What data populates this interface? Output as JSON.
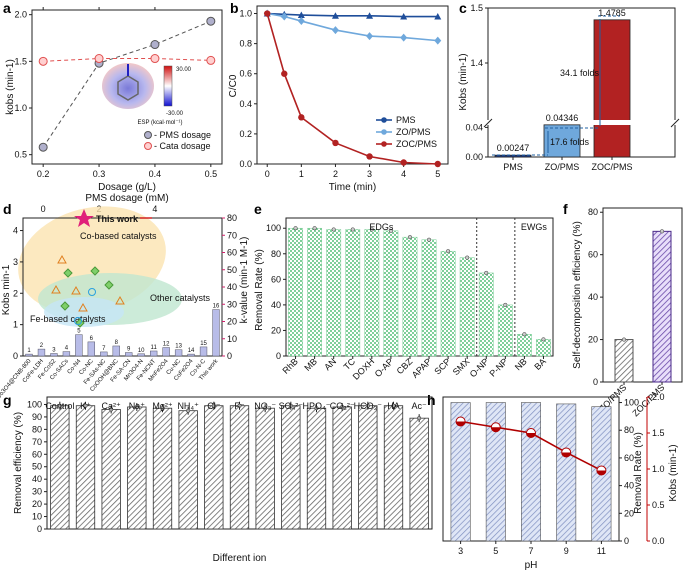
{
  "chart_data": [
    {
      "panel": "a",
      "type": "scatter",
      "xlabel": "Dosage (g/L)",
      "ylabel": "kobs (min-1)",
      "xticks": [
        "0.2",
        "0.3",
        "0.4",
        "0.5"
      ],
      "yticks": [
        "0.5",
        "1.0",
        "1.5",
        "2.0"
      ],
      "xlim": [
        0.18,
        0.52
      ],
      "ylim": [
        0.4,
        2.05
      ],
      "series": [
        {
          "name": "PMS dosage",
          "x": [
            0.2,
            0.3,
            0.4,
            0.5
          ],
          "y": [
            0.58,
            1.48,
            1.68,
            1.93
          ],
          "color": "#555555",
          "fill": "#b0b0cc"
        },
        {
          "name": "Cata dosage",
          "x": [
            0.2,
            0.3,
            0.4,
            0.5
          ],
          "y": [
            1.5,
            1.53,
            1.53,
            1.51
          ],
          "color": "#e05050",
          "fill": "#ffd0d0"
        }
      ],
      "top_axis": {
        "label": "PMS dosage (mM)",
        "ticks": [
          "0",
          "2",
          "4"
        ]
      },
      "esp": {
        "label": "ESP (kcal·mol⁻¹)",
        "max": "30.00",
        "min": "-30.00"
      }
    },
    {
      "panel": "b",
      "type": "line",
      "xlabel": "Time (min)",
      "ylabel": "C/C0",
      "x": [
        0,
        0.5,
        1,
        2,
        3,
        4,
        5
      ],
      "xticks": [
        "0",
        "1",
        "2",
        "3",
        "4",
        "5"
      ],
      "yticks": [
        "0.0",
        "0.2",
        "0.4",
        "0.6",
        "0.8",
        "1.0"
      ],
      "xlim": [
        -0.3,
        5.3
      ],
      "ylim": [
        0,
        1.05
      ],
      "series": [
        {
          "name": "PMS",
          "values": [
            1.0,
            0.995,
            0.99,
            0.985,
            0.985,
            0.98,
            0.98
          ],
          "color": "#1f4e9a",
          "marker": "triangle"
        },
        {
          "name": "ZO/PMS",
          "values": [
            1.0,
            0.98,
            0.95,
            0.89,
            0.85,
            0.84,
            0.82
          ],
          "color": "#6fa8dc",
          "marker": "diamond"
        },
        {
          "name": "ZOC/PMS",
          "values": [
            1.0,
            0.6,
            0.31,
            0.14,
            0.05,
            0.01,
            0.0
          ],
          "color": "#b22222",
          "marker": "circle"
        }
      ]
    },
    {
      "panel": "c",
      "type": "bar",
      "ylabel": "Kobs (min-1)",
      "categories": [
        "PMS",
        "ZO/PMS",
        "ZOC/PMS"
      ],
      "values": [
        0.00247,
        0.04346,
        1.4785
      ],
      "value_labels": [
        "0.00247",
        "0.04346",
        "1.4785"
      ],
      "colors": [
        "#1f3f8f",
        "#6fa8dc",
        "#b22222"
      ],
      "yticks": [
        "0.00",
        "0.04",
        "1.4",
        "1.5"
      ],
      "annotations": [
        "17.6 folds",
        "34.1 folds"
      ]
    },
    {
      "panel": "d",
      "type": "scatter",
      "ylabel": "Kobs min-1",
      "y2label": "k-value (min-1 M-1)",
      "yticks": [
        "0",
        "1",
        "2",
        "3",
        "4"
      ],
      "y2ticks": [
        "0",
        "10",
        "20",
        "30",
        "40",
        "50",
        "60",
        "70",
        "80"
      ],
      "groups": [
        "Co-based catalysts",
        "Other catalysts",
        "Fe-based catalysts"
      ],
      "star_label": "This work",
      "bar_numbers": [
        "1",
        "2",
        "3",
        "4",
        "5",
        "6",
        "7",
        "8",
        "9",
        "10",
        "11",
        "12",
        "13",
        "14",
        "15",
        "16"
      ],
      "bar_values": [
        0.06,
        0.22,
        0.08,
        0.14,
        0.68,
        0.45,
        0.13,
        0.32,
        0.11,
        0.07,
        0.16,
        0.27,
        0.2,
        0.06,
        0.29,
        1.48
      ],
      "categories": [
        "Co3O4@CNB-800",
        "CoFe-LDH",
        "Fe-CoS2",
        "Co-SACs",
        "Co-N4",
        "Co-NC",
        "Fe-SAs-NC",
        "CoOOH@BNC",
        "Fe-SA-CN",
        "Mn3O4-N",
        "Fe-NCNT",
        "MnFe2O4",
        "Cu-NC",
        "CoFe2O4",
        "Co-N-C",
        "This work"
      ]
    },
    {
      "panel": "e",
      "type": "bar",
      "ylabel": "Removal Rate (%)",
      "yticks": [
        "0",
        "20",
        "40",
        "60",
        "80",
        "100"
      ],
      "categories": [
        "RhB",
        "MB",
        "AN",
        "TC",
        "DOXH",
        "O-AP",
        "CBZ",
        "APAP",
        "SCP",
        "SMX",
        "O-NP",
        "P-NP",
        "NB",
        "BA"
      ],
      "values": [
        100,
        100,
        99,
        99,
        99,
        98,
        93,
        91,
        82,
        77,
        65,
        40,
        17,
        13
      ],
      "groups": [
        "EDGs",
        "EWGs"
      ]
    },
    {
      "panel": "f",
      "type": "bar",
      "ylabel": "Self-decomposition efficiency (%)",
      "yticks": [
        "0",
        "20",
        "40",
        "60",
        "80"
      ],
      "categories": [
        "ZO/PMS",
        "ZOC/PMS"
      ],
      "values": [
        20,
        71
      ]
    },
    {
      "panel": "g",
      "type": "bar",
      "xlabel": "Different ion",
      "ylabel": "Removal efficiency (%)",
      "yticks": [
        "0",
        "10",
        "20",
        "30",
        "40",
        "50",
        "60",
        "70",
        "80",
        "90",
        "100"
      ],
      "categories": [
        "Control",
        "K⁺",
        "Ca²⁺",
        "Na⁺",
        "Mg²⁺",
        "NH₄⁺",
        "Cl⁻",
        "F⁻",
        "NO₃⁻",
        "SO₄²⁻",
        "HPO₄⁻",
        "CO₃²⁻",
        "HCO₃⁻",
        "HA",
        "Ac⁻"
      ],
      "values": [
        99,
        99,
        96,
        98,
        97,
        95,
        99,
        99,
        97,
        99,
        97,
        98,
        99,
        99,
        89
      ]
    },
    {
      "panel": "h",
      "type": "bar",
      "xlabel": "pH",
      "ylabel": "Removal Rate (%)",
      "y2label": "Kobs (min-1)",
      "categories": [
        "3",
        "5",
        "7",
        "9",
        "11"
      ],
      "values": [
        100,
        100,
        100,
        99,
        97
      ],
      "kobs": [
        1.66,
        1.58,
        1.5,
        1.23,
        0.98
      ],
      "yticks": [
        "0",
        "20",
        "40",
        "60",
        "80",
        "100"
      ],
      "y2ticks": [
        "0.0",
        "0.5",
        "1.0",
        "1.5",
        "2.0"
      ]
    }
  ]
}
